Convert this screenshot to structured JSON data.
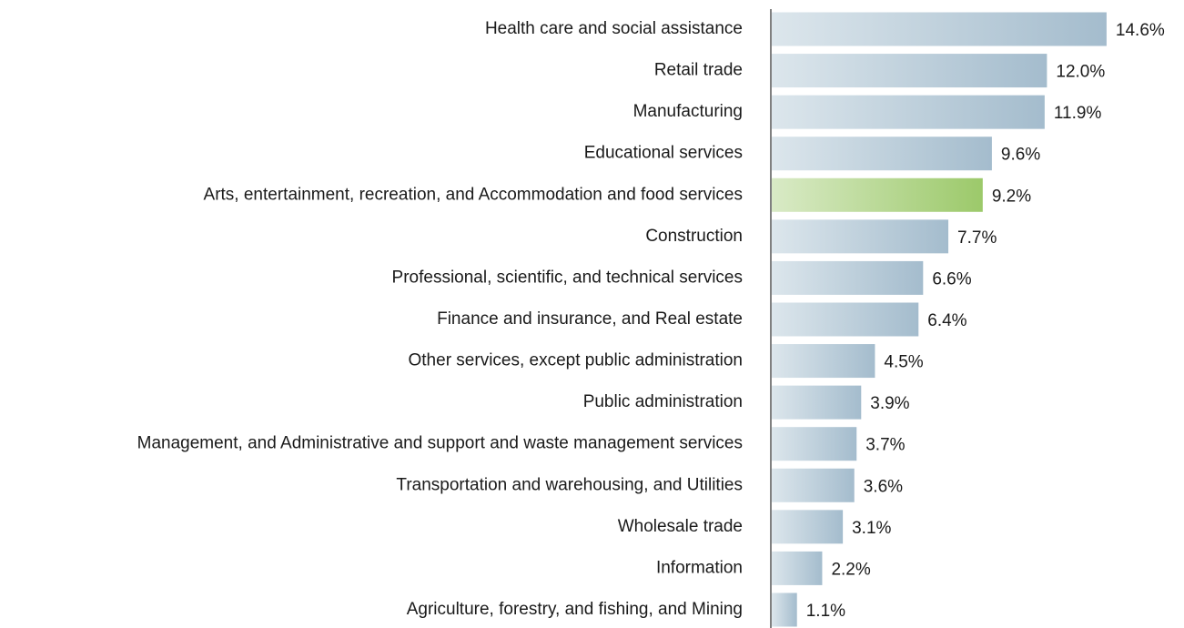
{
  "chart_data": {
    "type": "hbar",
    "categories": [
      "Health care and social assistance",
      "Retail trade",
      "Manufacturing",
      "Educational services",
      "Arts, entertainment, recreation, and Accommodation and food services",
      "Construction",
      "Professional, scientific, and technical services",
      "Finance and insurance, and Real estate",
      "Other services, except public administration",
      "Public administration",
      "Management, and Administrative and support and waste management services",
      "Transportation and warehousing, and Utilities",
      "Wholesale trade",
      "Information",
      "Agriculture, forestry, and fishing, and Mining"
    ],
    "values": [
      14.6,
      12.0,
      11.9,
      9.6,
      9.2,
      7.7,
      6.6,
      6.4,
      4.5,
      3.9,
      3.7,
      3.6,
      3.1,
      2.2,
      1.1
    ],
    "value_labels": [
      "14.6%",
      "12.0%",
      "11.9%",
      "9.6%",
      "9.2%",
      "7.7%",
      "6.6%",
      "6.4%",
      "4.5%",
      "3.9%",
      "3.7%",
      "3.6%",
      "3.1%",
      "2.2%",
      "1.1%"
    ],
    "colors": [
      "#a4bccd",
      "#a4bccd",
      "#a4bccd",
      "#a4bccd",
      "#9cc96a",
      "#a4bccd",
      "#a4bccd",
      "#a4bccd",
      "#a4bccd",
      "#a4bccd",
      "#a4bccd",
      "#a4bccd",
      "#a4bccd",
      "#a4bccd",
      "#a4bccd"
    ],
    "xlim": [
      0,
      15
    ]
  }
}
